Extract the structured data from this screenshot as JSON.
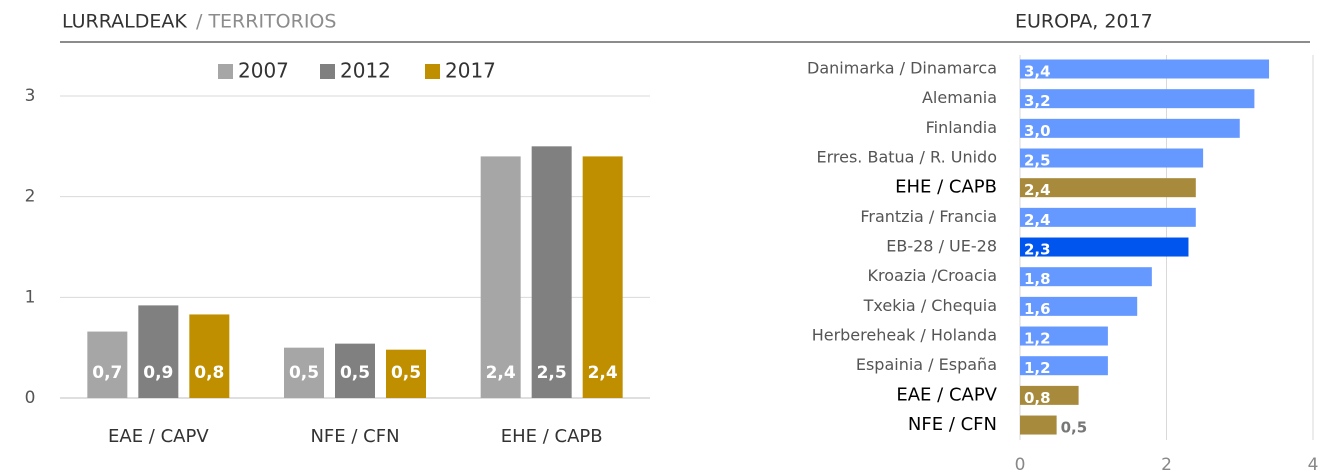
{
  "chart_data": [
    {
      "type": "bar",
      "title": "LURRALDEAK",
      "subtitle": "/ TERRITORIOS",
      "categories": [
        "EAE / CAPV",
        "NFE / CFN",
        "EHE / CAPB"
      ],
      "series": [
        {
          "name": "2007",
          "color": "#a6a6a6",
          "values": [
            0.66,
            0.5,
            2.4
          ],
          "value_labels": [
            "0,7",
            "0,5",
            "2,4"
          ]
        },
        {
          "name": "2012",
          "color": "#808080",
          "values": [
            0.92,
            0.54,
            2.5
          ],
          "value_labels": [
            "0,9",
            "0,5",
            "2,5"
          ]
        },
        {
          "name": "2017",
          "color": "#bf8f00",
          "values": [
            0.83,
            0.48,
            2.4
          ],
          "value_labels": [
            "0,8",
            "0,5",
            "2,4"
          ]
        }
      ],
      "ylim": [
        0,
        3
      ],
      "yticks": [
        0,
        1,
        2,
        3
      ],
      "grid": true
    },
    {
      "type": "hbar",
      "title": "EUROPA, 2017",
      "categories": [
        "Danimarka / Dinamarca",
        "Alemania",
        "Finlandia",
        "Erres. Batua / R. Unido",
        "EHE / CAPB",
        "Frantzia / Francia",
        "EB-28 / UE-28",
        "Kroazia /Croacia",
        "Txekia / Chequia",
        "Herbereheak / Holanda",
        "Espainia / España",
        "EAE / CAPV",
        "NFE / CFN"
      ],
      "values": [
        3.4,
        3.2,
        3.0,
        2.5,
        2.4,
        2.4,
        2.3,
        1.8,
        1.6,
        1.2,
        1.2,
        0.8,
        0.5
      ],
      "value_labels": [
        "3,4",
        "3,2",
        "3,0",
        "2,5",
        "2,4",
        "2,4",
        "2,3",
        "1,8",
        "1,6",
        "1,2",
        "1,2",
        "0,8",
        "0,5"
      ],
      "colors": [
        "#6699ff",
        "#6699ff",
        "#6699ff",
        "#6699ff",
        "#a88a3c",
        "#6699ff",
        "#0055ee",
        "#6699ff",
        "#6699ff",
        "#6699ff",
        "#6699ff",
        "#a88a3c",
        "#a88a3c"
      ],
      "xlim": [
        0,
        4
      ],
      "xticks": [
        0,
        2,
        4
      ],
      "grid": true
    }
  ]
}
